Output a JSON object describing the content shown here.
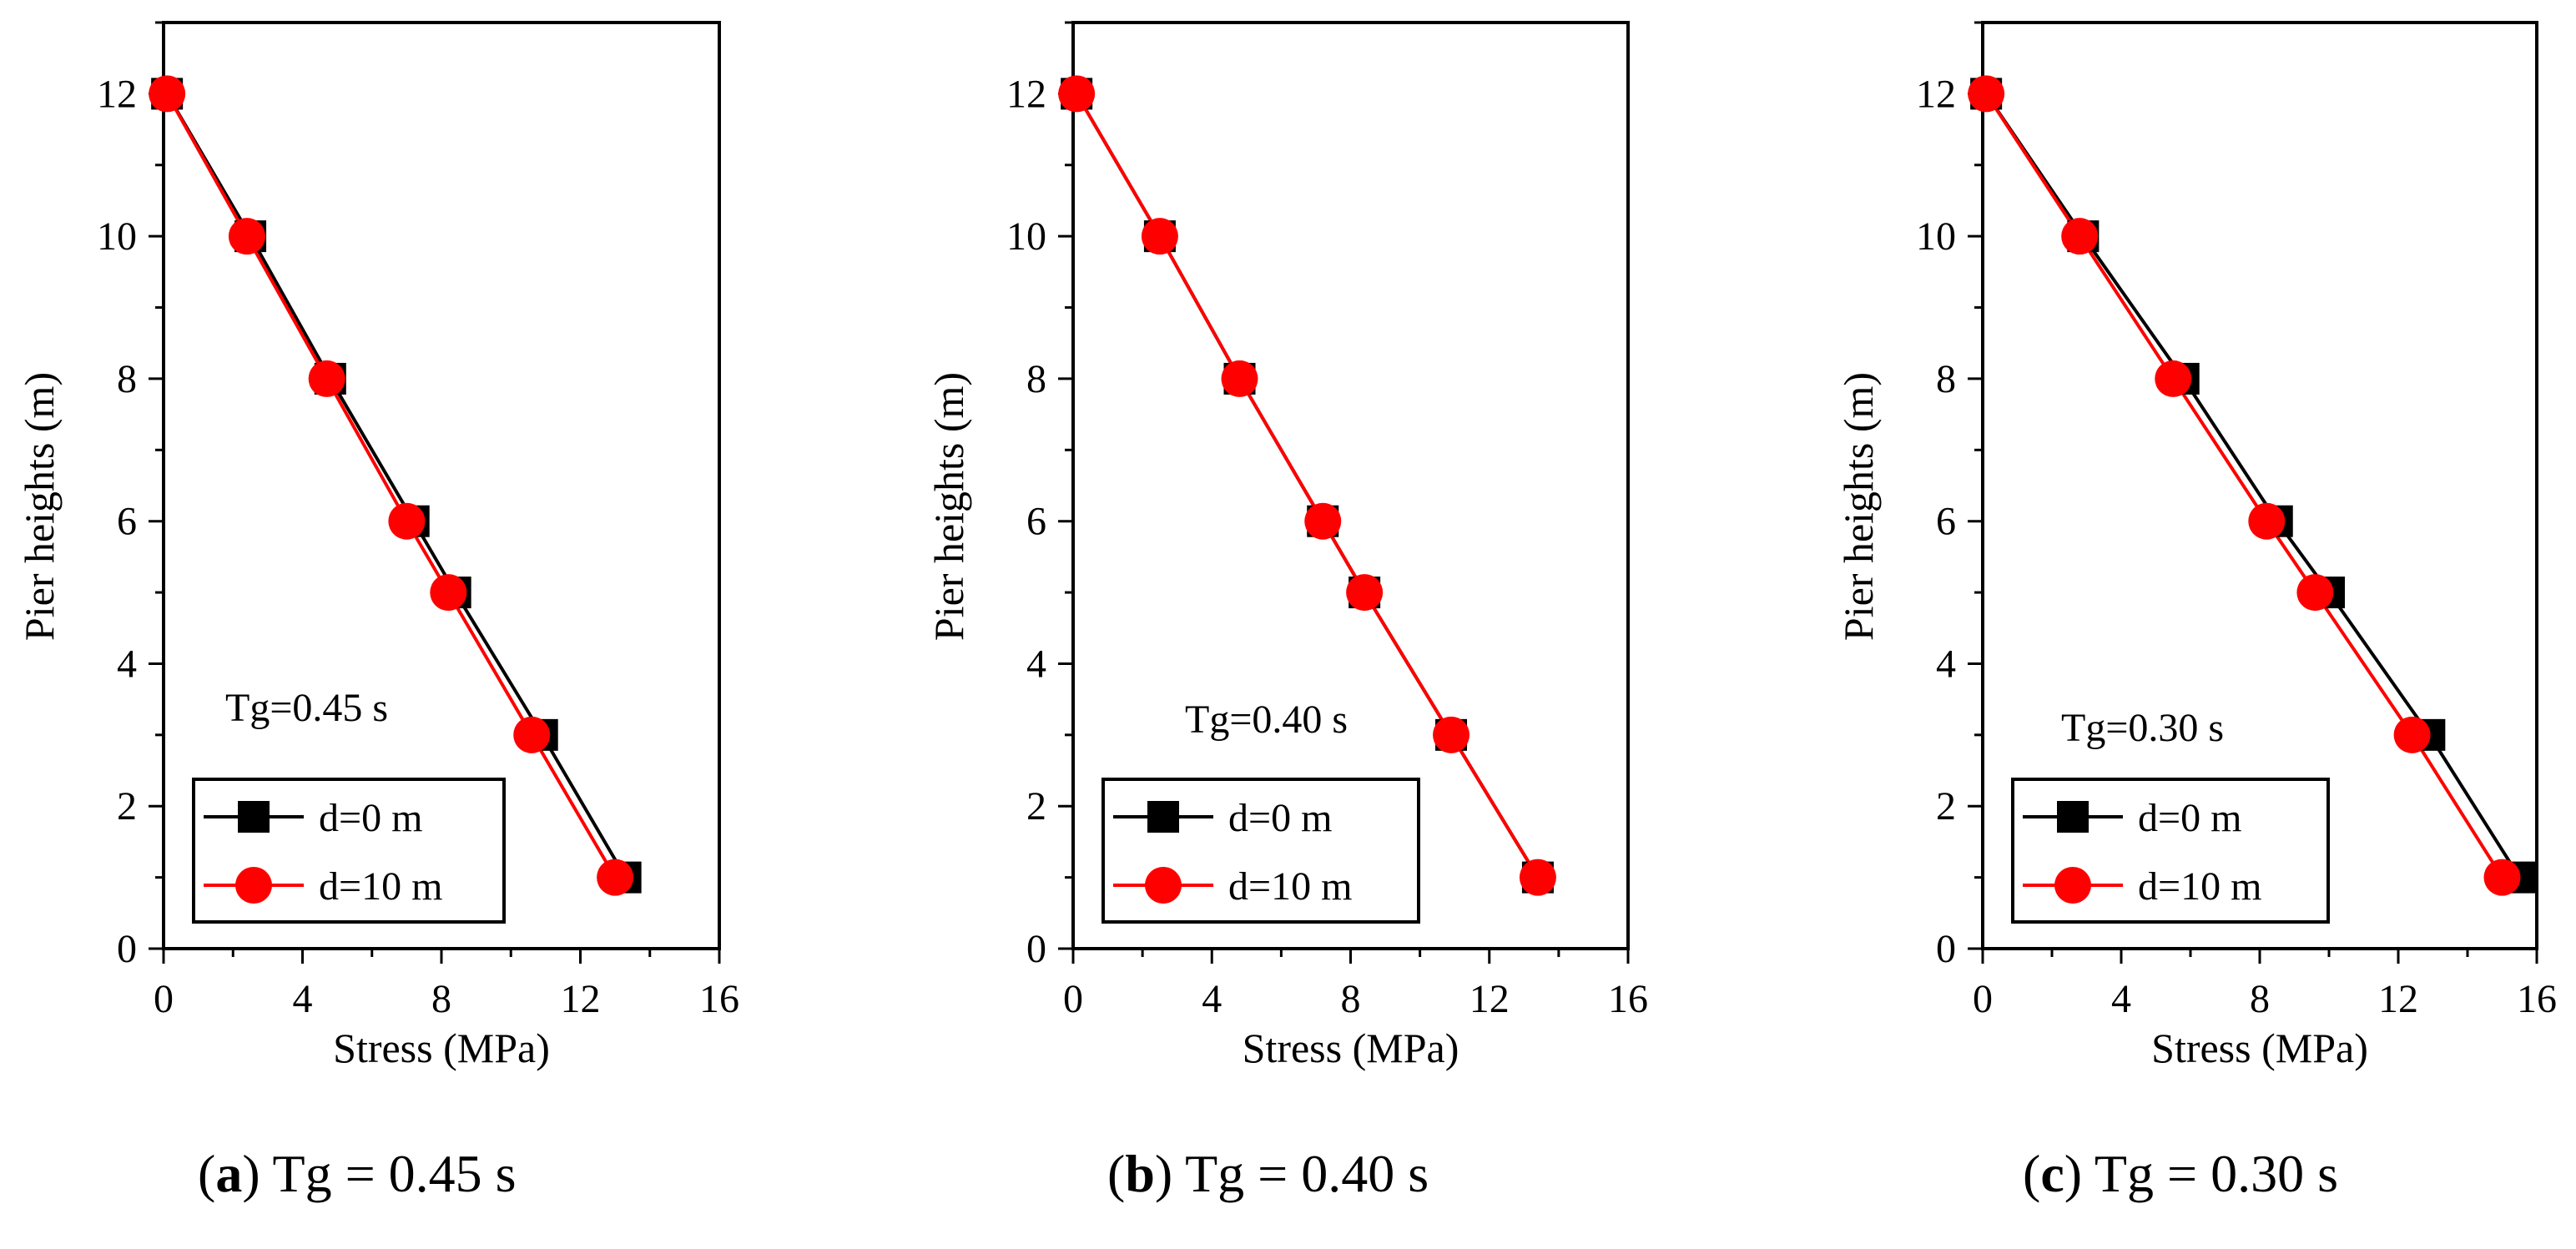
{
  "chart_data": [
    {
      "type": "line",
      "panel": "a",
      "xlabel": "Stress (MPa)",
      "ylabel": "Pier heights (m)",
      "xlim": [
        0,
        16
      ],
      "ylim": [
        0,
        13
      ],
      "xticks": [
        0,
        4,
        8,
        12,
        16
      ],
      "yticks": [
        0,
        2,
        4,
        6,
        8,
        10,
        12
      ],
      "annotation": "Tg=0.45 s",
      "legend_position": "bottom-left",
      "series": [
        {
          "name": "d=0 m",
          "color": "#000000",
          "marker": "square",
          "x": [
            0.1,
            2.5,
            4.8,
            7.2,
            8.4,
            10.9,
            13.3
          ],
          "y": [
            12,
            10,
            8,
            6,
            5,
            3,
            1
          ]
        },
        {
          "name": "d=10 m",
          "color": "#ff0000",
          "marker": "circle",
          "x": [
            0.1,
            2.4,
            4.7,
            7.0,
            8.2,
            10.6,
            13.0
          ],
          "y": [
            12,
            10,
            8,
            6,
            5,
            3,
            1
          ]
        }
      ],
      "caption": {
        "label": "a",
        "text": "Tg = 0.45 s"
      }
    },
    {
      "type": "line",
      "panel": "b",
      "xlabel": "Stress (MPa)",
      "ylabel": "Pier heights (m)",
      "xlim": [
        0,
        16
      ],
      "ylim": [
        0,
        13
      ],
      "xticks": [
        0,
        4,
        8,
        12,
        16
      ],
      "yticks": [
        0,
        2,
        4,
        6,
        8,
        10,
        12
      ],
      "annotation": "Tg=0.40 s",
      "legend_position": "bottom-left",
      "series": [
        {
          "name": "d=0 m",
          "color": "#000000",
          "marker": "square",
          "x": [
            0.1,
            2.5,
            4.8,
            7.2,
            8.4,
            10.9,
            13.4
          ],
          "y": [
            12,
            10,
            8,
            6,
            5,
            3,
            1
          ]
        },
        {
          "name": "d=10 m",
          "color": "#ff0000",
          "marker": "circle",
          "x": [
            0.1,
            2.5,
            4.8,
            7.2,
            8.4,
            10.9,
            13.4
          ],
          "y": [
            12,
            10,
            8,
            6,
            5,
            3,
            1
          ]
        }
      ],
      "caption": {
        "label": "b",
        "text": "Tg = 0.40 s"
      }
    },
    {
      "type": "line",
      "panel": "c",
      "xlabel": "Stress (MPa)",
      "ylabel": "Pier heights (m)",
      "xlim": [
        0,
        16
      ],
      "ylim": [
        0,
        13
      ],
      "xticks": [
        0,
        4,
        8,
        12,
        16
      ],
      "yticks": [
        0,
        2,
        4,
        6,
        8,
        10,
        12
      ],
      "annotation": "Tg=0.30 s",
      "legend_position": "bottom-left",
      "series": [
        {
          "name": "d=0 m",
          "color": "#000000",
          "marker": "square",
          "x": [
            0.1,
            2.9,
            5.8,
            8.5,
            10.0,
            12.9,
            15.5
          ],
          "y": [
            12,
            10,
            8,
            6,
            5,
            3,
            1
          ]
        },
        {
          "name": "d=10 m",
          "color": "#ff0000",
          "marker": "circle",
          "x": [
            0.1,
            2.8,
            5.5,
            8.2,
            9.6,
            12.4,
            15.0
          ],
          "y": [
            12,
            10,
            8,
            6,
            5,
            3,
            1
          ]
        }
      ],
      "caption": {
        "label": "c",
        "text": "Tg = 0.30 s"
      }
    }
  ]
}
